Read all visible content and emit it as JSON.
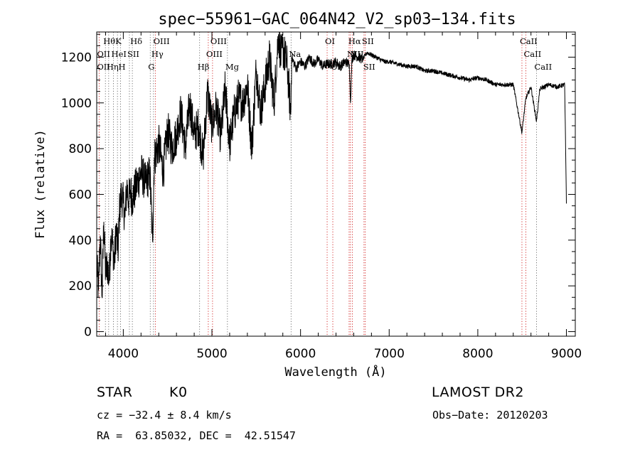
{
  "chart_data": {
    "type": "line",
    "title": "spec−55961−GAC_064N42_V2_sp03−134.fits",
    "xlabel": "Wavelength (Å)",
    "ylabel": "Flux (relative)",
    "xlim": [
      3700,
      9100
    ],
    "ylim": [
      -20,
      1310
    ],
    "xticks": [
      "4000",
      "5000",
      "6000",
      "7000",
      "8000",
      "9000"
    ],
    "yticks": [
      "0",
      "200",
      "400",
      "600",
      "800",
      "1000",
      "1200"
    ],
    "grid": false,
    "series": [
      {
        "x": [
          3700,
          3720,
          3740,
          3760,
          3780,
          3800,
          3820,
          3840,
          3860,
          3880,
          3900,
          3920,
          3940,
          3960,
          3980,
          4000,
          4020,
          4040,
          4060,
          4080,
          4100,
          4150,
          4200,
          4250,
          4300,
          4330,
          4350,
          4400,
          4450,
          4500,
          4550,
          4600,
          4650,
          4700,
          4750,
          4800,
          4850,
          4900,
          4950,
          5000,
          5050,
          5100,
          5150,
          5200,
          5250,
          5300,
          5350,
          5400,
          5450,
          5500,
          5550,
          5600,
          5650,
          5700,
          5750,
          5780,
          5800,
          5850,
          5890,
          5900,
          5950,
          6000,
          6050,
          6100,
          6150,
          6200,
          6250,
          6300,
          6350,
          6400,
          6450,
          6500,
          6550,
          6563,
          6580,
          6600,
          6650,
          6700,
          6750,
          6800,
          6850,
          6900,
          6950,
          7000,
          7100,
          7200,
          7300,
          7400,
          7500,
          7600,
          7700,
          7800,
          7900,
          8000,
          8100,
          8200,
          8300,
          8400,
          8498,
          8542,
          8600,
          8662,
          8700,
          8800,
          8900,
          8980,
          9000
        ],
        "y": [
          300,
          180,
          420,
          150,
          480,
          250,
          300,
          220,
          420,
          380,
          300,
          460,
          340,
          550,
          600,
          560,
          500,
          640,
          570,
          620,
          580,
          640,
          700,
          650,
          690,
          400,
          760,
          820,
          700,
          880,
          800,
          860,
          960,
          800,
          1000,
          860,
          900,
          760,
          1050,
          900,
          980,
          850,
          1060,
          820,
          950,
          1020,
          1000,
          1080,
          800,
          1150,
          960,
          1080,
          1200,
          1000,
          1300,
          1200,
          1240,
          1160,
          950,
          1200,
          1150,
          1180,
          1160,
          1200,
          1170,
          1190,
          1160,
          1170,
          1170,
          1180,
          1160,
          1180,
          1170,
          1000,
          1190,
          1210,
          1200,
          1190,
          1220,
          1210,
          1200,
          1190,
          1180,
          1180,
          1170,
          1160,
          1160,
          1140,
          1140,
          1130,
          1120,
          1110,
          1100,
          1110,
          1100,
          1080,
          1080,
          1080,
          870,
          1020,
          1070,
          920,
          1060,
          1080,
          1070,
          1080,
          560
        ]
      }
    ],
    "line_labels": [
      {
        "text": "Hθ",
        "x": 3798,
        "row": 0
      },
      {
        "text": "K",
        "x": 3934,
        "row": 0
      },
      {
        "text": "Hδ",
        "x": 4102,
        "row": 0
      },
      {
        "text": "OIII",
        "x": 4363,
        "row": 0
      },
      {
        "text": "OIII",
        "x": 5007,
        "row": 0
      },
      {
        "text": "OI",
        "x": 6300,
        "row": 0
      },
      {
        "text": "Hα",
        "x": 6563,
        "row": 0
      },
      {
        "text": "SII",
        "x": 6716,
        "row": 0
      },
      {
        "text": "CaII",
        "x": 8498,
        "row": 0
      },
      {
        "text": "OII",
        "x": 3727,
        "row": 1
      },
      {
        "text": "HeI",
        "x": 3889,
        "row": 1
      },
      {
        "text": "SII",
        "x": 4069,
        "row": 1
      },
      {
        "text": "Hγ",
        "x": 4341,
        "row": 1
      },
      {
        "text": "OIII",
        "x": 4959,
        "row": 1
      },
      {
        "text": "Na",
        "x": 5893,
        "row": 1
      },
      {
        "text": "NII",
        "x": 6548,
        "row": 1
      },
      {
        "text": "NII",
        "x": 6584,
        "row": 1
      },
      {
        "text": "CaII",
        "x": 8542,
        "row": 1
      },
      {
        "text": "OII",
        "x": 3727,
        "row": 2
      },
      {
        "text": "Hη",
        "x": 3835,
        "row": 2
      },
      {
        "text": "H",
        "x": 3969,
        "row": 2
      },
      {
        "text": "G",
        "x": 4304,
        "row": 2
      },
      {
        "text": "Hβ",
        "x": 4861,
        "row": 2
      },
      {
        "text": "Mg",
        "x": 5175,
        "row": 2
      },
      {
        "text": "OI",
        "x": 6364,
        "row": 2
      },
      {
        "text": "SII",
        "x": 6731,
        "row": 2
      },
      {
        "text": "CaII",
        "x": 8662,
        "row": 2
      }
    ],
    "vlines": [
      3727,
      3798,
      3835,
      3889,
      3934,
      3969,
      4069,
      4102,
      4304,
      4341,
      4363,
      4861,
      4959,
      5007,
      5175,
      5893,
      6300,
      6364,
      6548,
      6563,
      6584,
      6716,
      6731,
      8498,
      8542,
      8662
    ],
    "vline_colors": {
      "emission": "#cc0000",
      "absorption": "#555555"
    },
    "line_color": "#000000"
  },
  "info": {
    "object_type": "STAR",
    "subclass": "K0",
    "survey": "LAMOST DR2",
    "redshift": "cz = −32.4 ± 8.4 km/s",
    "obs_date": "Obs−Date: 20120203",
    "coords": "RA =  63.85032, DEC =  42.51547"
  }
}
